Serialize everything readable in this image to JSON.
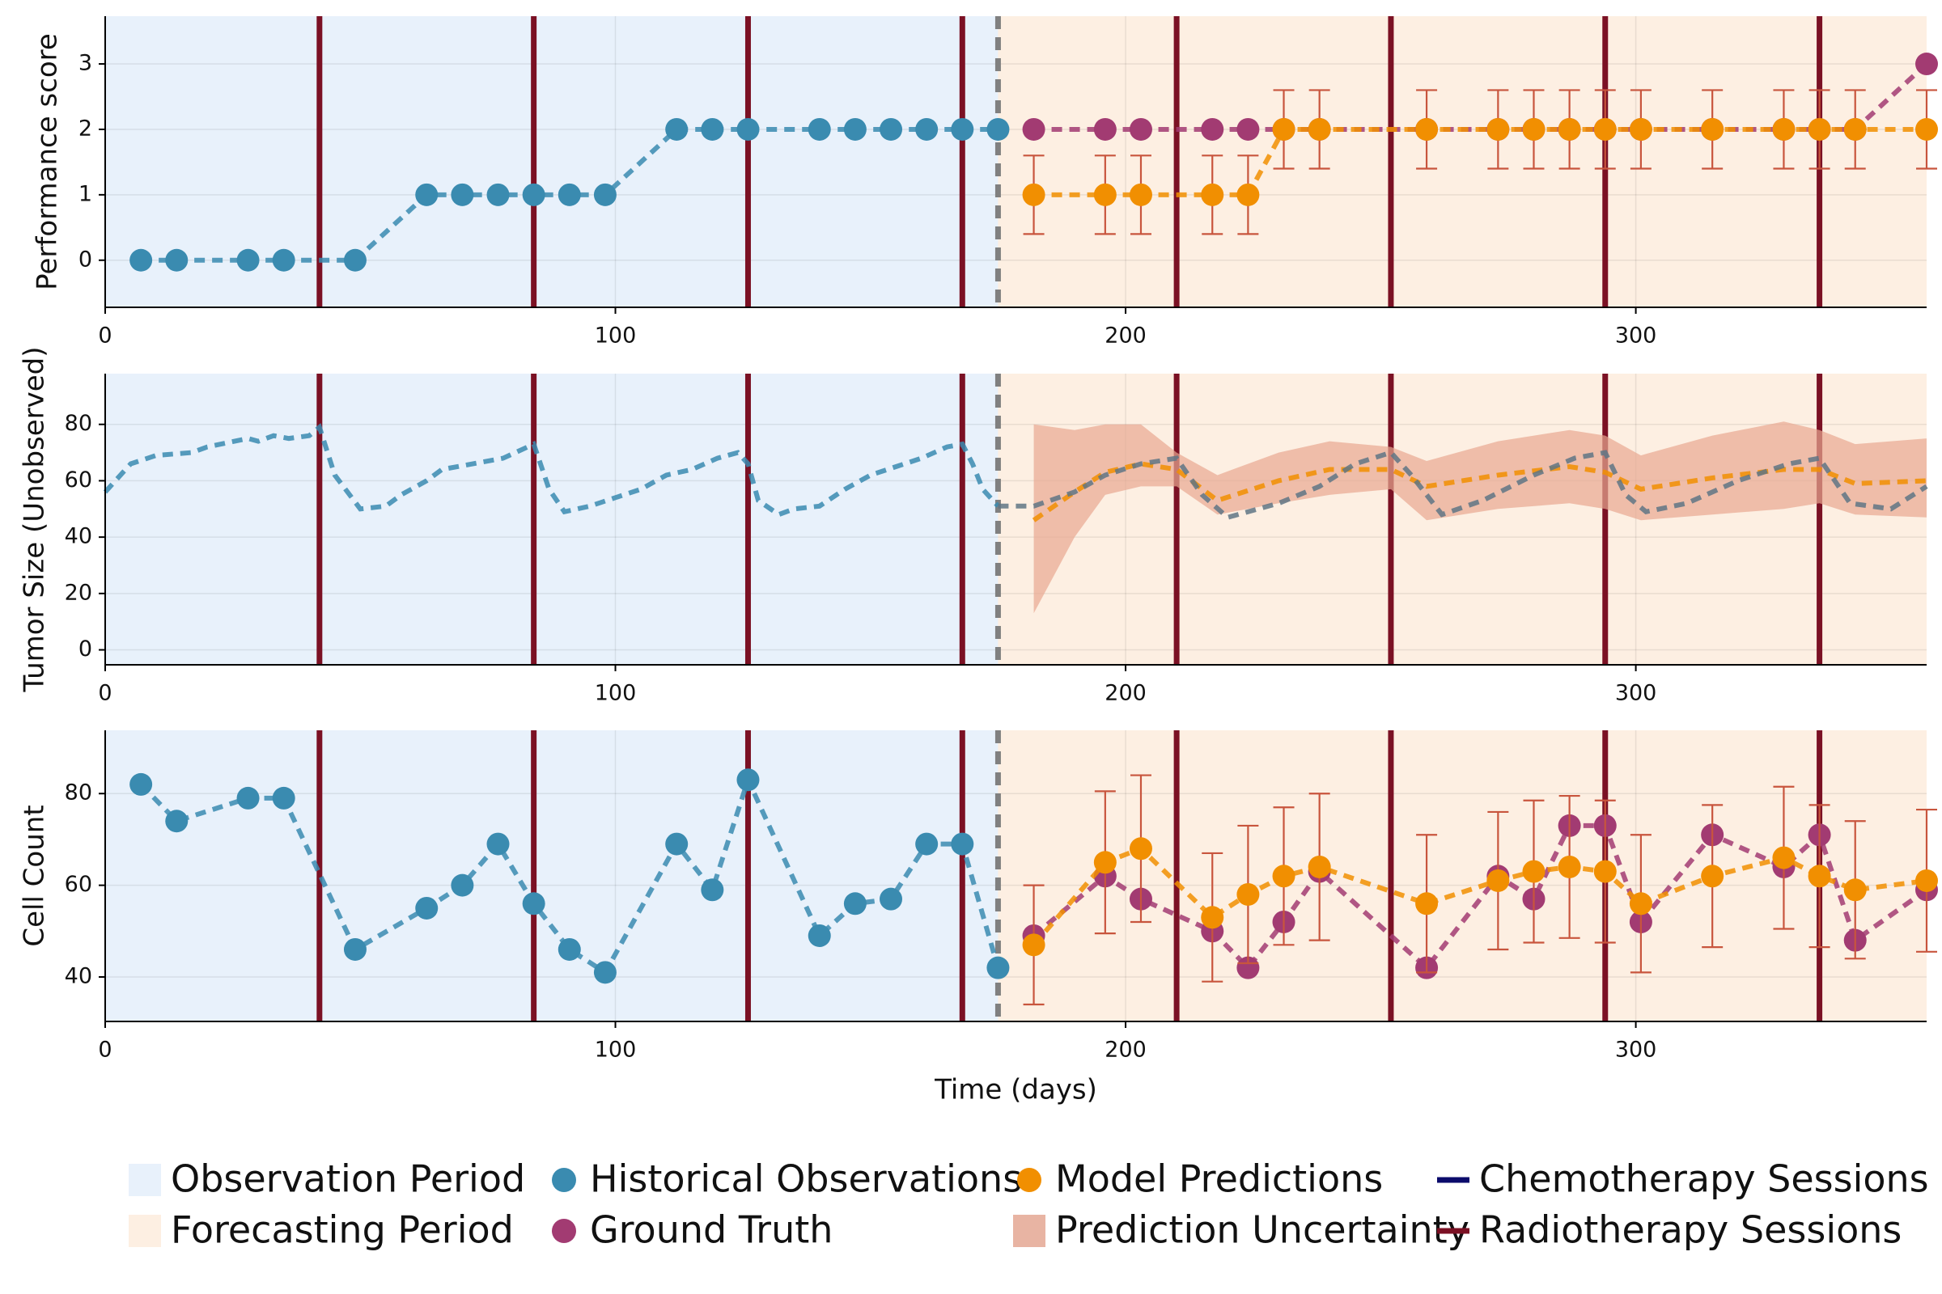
{
  "chart_data": [
    {
      "type": "line",
      "ylabel": "Performance score",
      "xlim": [
        0,
        357
      ],
      "xticks": [
        0,
        100,
        200,
        300
      ],
      "ylim": [
        -0.72,
        3.73
      ],
      "yticks": [
        0,
        1,
        2,
        3
      ],
      "series": [
        {
          "color": "#3a8bb0",
          "markers": true,
          "x": [
            7,
            14,
            28,
            35,
            49,
            63,
            70,
            77,
            84,
            91,
            98,
            112,
            119,
            126,
            140,
            147,
            154,
            161,
            168,
            175
          ],
          "values": [
            0,
            0,
            0,
            0,
            0,
            1,
            1,
            1,
            1,
            1,
            1,
            2,
            2,
            2,
            2,
            2,
            2,
            2,
            2,
            2
          ]
        },
        {
          "color": "#a23b72",
          "markers": true,
          "x": [
            182,
            196,
            203,
            217,
            224,
            231,
            238,
            259,
            273,
            280,
            287,
            294,
            301,
            315,
            329,
            336,
            343,
            357
          ],
          "values": [
            2,
            2,
            2,
            2,
            2,
            2,
            2,
            2,
            2,
            2,
            2,
            2,
            2,
            2,
            2,
            2,
            2,
            3
          ]
        },
        {
          "color": "#f18f01",
          "markers": true,
          "error_color": "#c8553d",
          "x": [
            182,
            196,
            203,
            217,
            224,
            231,
            238,
            259,
            273,
            280,
            287,
            294,
            301,
            315,
            329,
            336,
            343,
            357
          ],
          "values": [
            1,
            1,
            1,
            1,
            1,
            2,
            2,
            2,
            2,
            2,
            2,
            2,
            2,
            2,
            2,
            2,
            2,
            2
          ],
          "errors": [
            0.6,
            0.6,
            0.6,
            0.6,
            0.6,
            0.6,
            0.6,
            0.6,
            0.6,
            0.6,
            0.6,
            0.6,
            0.6,
            0.6,
            0.6,
            0.6,
            0.6,
            0.6
          ]
        }
      ]
    },
    {
      "type": "line",
      "ylabel": "Tumor Size (Unobserved)",
      "xlim": [
        0,
        357
      ],
      "xticks": [
        0,
        100,
        200,
        300
      ],
      "ylim": [
        -5.3,
        98
      ],
      "yticks": [
        0,
        20,
        40,
        60,
        80
      ],
      "series": [
        {
          "color": "#e8a892",
          "opacity": 0.7,
          "x": [
            182,
            190,
            196,
            203,
            210,
            218,
            230,
            240,
            252,
            259,
            273,
            287,
            294,
            301,
            315,
            329,
            336,
            343,
            357
          ],
          "lower": [
            13,
            40,
            55,
            58,
            58,
            48,
            52,
            55,
            57,
            46,
            50,
            52,
            50,
            46,
            48,
            50,
            52,
            48,
            47
          ],
          "upper": [
            80,
            78,
            80,
            80,
            70,
            62,
            70,
            74,
            72,
            67,
            74,
            78,
            76,
            69,
            76,
            81,
            78,
            73,
            75
          ]
        },
        {
          "color": "#3a8bb0",
          "markers": false,
          "x": [
            0,
            5,
            10,
            17,
            20,
            28,
            30,
            33,
            36,
            40,
            42,
            45,
            50,
            55,
            58,
            63,
            66,
            72,
            78,
            84,
            87,
            90,
            95,
            100,
            105,
            110,
            115,
            120,
            124,
            126,
            128,
            132,
            135,
            140,
            145,
            150,
            155,
            160,
            165,
            168,
            170,
            172,
            175
          ],
          "values": [
            56,
            66,
            69,
            70,
            72,
            75,
            74,
            76,
            75,
            76,
            79,
            62,
            50,
            51,
            55,
            60,
            64,
            66,
            68,
            73,
            57,
            49,
            51,
            54,
            57,
            62,
            64,
            68,
            70,
            66,
            53,
            48,
            50,
            51,
            57,
            62,
            65,
            68,
            72,
            73,
            66,
            57,
            51
          ]
        },
        {
          "color": "#f18f01",
          "markers": false,
          "x": [
            182,
            190,
            196,
            203,
            210,
            218,
            230,
            240,
            252,
            259,
            273,
            287,
            294,
            301,
            315,
            329,
            336,
            343,
            357
          ],
          "values": [
            46,
            56,
            63,
            66,
            64,
            53,
            60,
            64,
            64,
            58,
            62,
            65,
            63,
            57,
            61,
            64,
            64,
            59,
            60
          ]
        },
        {
          "color": "#5f7685",
          "markers": false,
          "x": [
            175,
            182,
            190,
            196,
            203,
            210,
            215,
            220,
            230,
            238,
            245,
            252,
            256,
            262,
            270,
            280,
            288,
            294,
            298,
            302,
            310,
            320,
            330,
            336,
            342,
            350,
            357
          ],
          "values": [
            51,
            51,
            56,
            62,
            66,
            68,
            55,
            47,
            52,
            58,
            66,
            70,
            62,
            48,
            53,
            62,
            68,
            70,
            55,
            49,
            52,
            60,
            66,
            68,
            52,
            50,
            58
          ]
        }
      ]
    },
    {
      "type": "line",
      "ylabel": "Cell Count",
      "xlabel": "Time (days)",
      "xlim": [
        0,
        357
      ],
      "xticks": [
        0,
        100,
        200,
        300
      ],
      "ylim": [
        30.3,
        93.8
      ],
      "yticks": [
        40,
        60,
        80
      ],
      "series": [
        {
          "color": "#3a8bb0",
          "markers": true,
          "x": [
            7,
            14,
            28,
            35,
            49,
            63,
            70,
            77,
            84,
            91,
            98,
            112,
            119,
            126,
            140,
            147,
            154,
            161,
            168,
            175
          ],
          "values": [
            82,
            74,
            79,
            79,
            46,
            55,
            60,
            69,
            56,
            46,
            41,
            69,
            59,
            83,
            49,
            56,
            57,
            69,
            69,
            42
          ]
        },
        {
          "color": "#a23b72",
          "markers": true,
          "x": [
            182,
            196,
            203,
            217,
            224,
            231,
            238,
            259,
            273,
            280,
            287,
            294,
            301,
            315,
            329,
            336,
            343,
            357
          ],
          "values": [
            49,
            62,
            57,
            50,
            42,
            52,
            63,
            42,
            62,
            57,
            73,
            73,
            52,
            71,
            64,
            71,
            48,
            59
          ]
        },
        {
          "color": "#f18f01",
          "markers": true,
          "error_color": "#c8553d",
          "x": [
            182,
            196,
            203,
            217,
            224,
            231,
            238,
            259,
            273,
            280,
            287,
            294,
            301,
            315,
            329,
            336,
            343,
            357
          ],
          "values": [
            47,
            65,
            68,
            53,
            58,
            62,
            64,
            56,
            61,
            63,
            64,
            63,
            56,
            62,
            66,
            62,
            59,
            61
          ],
          "errors": [
            13,
            15.5,
            16,
            14,
            15,
            15,
            16,
            15,
            15,
            15.5,
            15.5,
            15.5,
            15,
            15.5,
            15.5,
            15.5,
            15,
            15.5
          ]
        }
      ]
    }
  ],
  "periods": {
    "observation": [
      0,
      175
    ],
    "forecast": [
      175,
      357
    ],
    "boundary_color": "#808080"
  },
  "sessions": {
    "chemotherapy": [],
    "radiotherapy": [
      42,
      84,
      126,
      168,
      210,
      252,
      294,
      336
    ]
  },
  "legend": [
    {
      "name": "Observation Period",
      "color": "#e8f1fb",
      "marker": "patch"
    },
    {
      "name": "Forecasting Period",
      "color": "#fdefe2",
      "marker": "patch"
    },
    {
      "name": "Historical Observations",
      "color": "#3a8bb0",
      "marker": "circle"
    },
    {
      "name": "Ground Truth",
      "color": "#a23b72",
      "marker": "circle"
    },
    {
      "name": "Model Predictions",
      "color": "#f18f01",
      "marker": "circle"
    },
    {
      "name": "Prediction Uncertainty",
      "color": "#e8b4a3",
      "marker": "patch"
    },
    {
      "name": "Chemotherapy Sessions",
      "color": "#0b0b6b",
      "marker": "line"
    },
    {
      "name": "Radiotherapy Sessions",
      "color": "#7b1124",
      "marker": "line"
    }
  ]
}
